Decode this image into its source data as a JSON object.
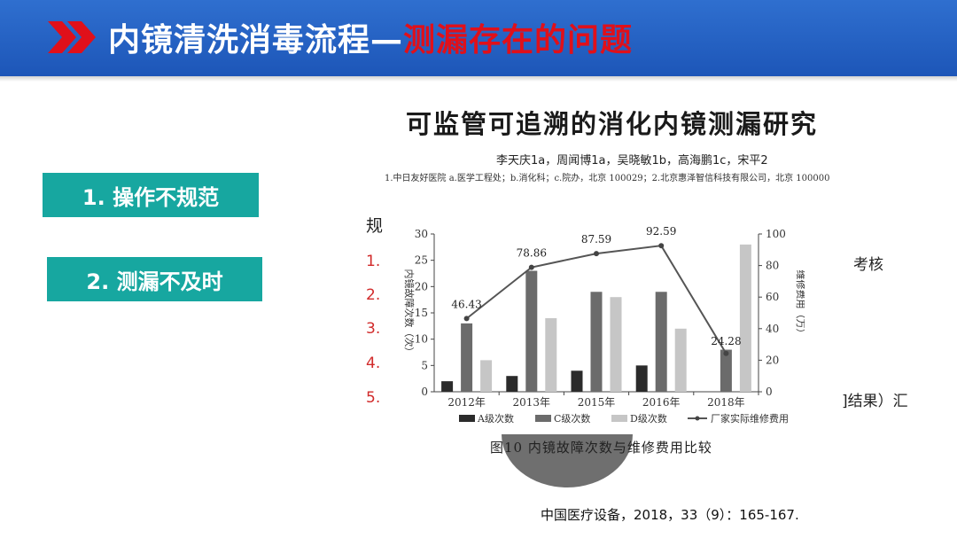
{
  "header": {
    "title_white": "内镜清洗消毒流程—",
    "title_red": "测漏存在的问题",
    "colors": {
      "bar": "#2f6fcf",
      "accent_red": "#e0101a"
    }
  },
  "tags": [
    {
      "label": "1. 操作不规范"
    },
    {
      "label": "2. 测漏不及时"
    }
  ],
  "background_text": {
    "top": "规",
    "right_top": "考核",
    "right_bottom": "]结果）汇",
    "numbers": [
      "1.",
      "2.",
      "3.",
      "4.",
      "5."
    ]
  },
  "paper": {
    "title": "可监管可追溯的消化内镜测漏研究",
    "authors": "李天庆1a，周闻博1a，吴晓敏1b，高海鹏1c，宋平2",
    "affiliation": "1.中日友好医院 a.医学工程处；b.消化科；c.院办，北京 100029；2.北京惠泽智信科技有限公司，北京 100000",
    "caption": "图10 内镜故障次数与维修费用比较"
  },
  "citation": "中国医疗设备，2018，33（9）：165-167.",
  "chart_data": {
    "type": "bar",
    "categories": [
      "2012年",
      "2013年",
      "2015年",
      "2016年",
      "2018年"
    ],
    "series": [
      {
        "name": "A级次数",
        "kind": "bar",
        "axis": "left",
        "color": "#2b2b2b",
        "values": [
          2,
          3,
          4,
          5,
          0
        ]
      },
      {
        "name": "C级次数",
        "kind": "bar",
        "axis": "left",
        "color": "#6b6b6b",
        "values": [
          13,
          23,
          19,
          19,
          8
        ]
      },
      {
        "name": "D级次数",
        "kind": "bar",
        "axis": "left",
        "color": "#c6c6c6",
        "values": [
          6,
          14,
          18,
          12,
          28
        ]
      },
      {
        "name": "厂家实际维修费用",
        "kind": "line",
        "axis": "right",
        "color": "#555555",
        "values": [
          46.43,
          78.86,
          87.59,
          92.59,
          24.28
        ]
      }
    ],
    "data_labels": [
      "46.43",
      "78.86",
      "87.59",
      "92.59",
      "24.28"
    ],
    "ylabel": "内镜故障次数（次）",
    "y2label": "维修费用（万）",
    "ylim": [
      0,
      30
    ],
    "yticks": [
      "0",
      "5",
      "10",
      "15",
      "20",
      "25",
      "30"
    ],
    "y2lim": [
      0,
      100
    ],
    "y2ticks": [
      "0",
      "20",
      "40",
      "60",
      "80",
      "100"
    ]
  }
}
